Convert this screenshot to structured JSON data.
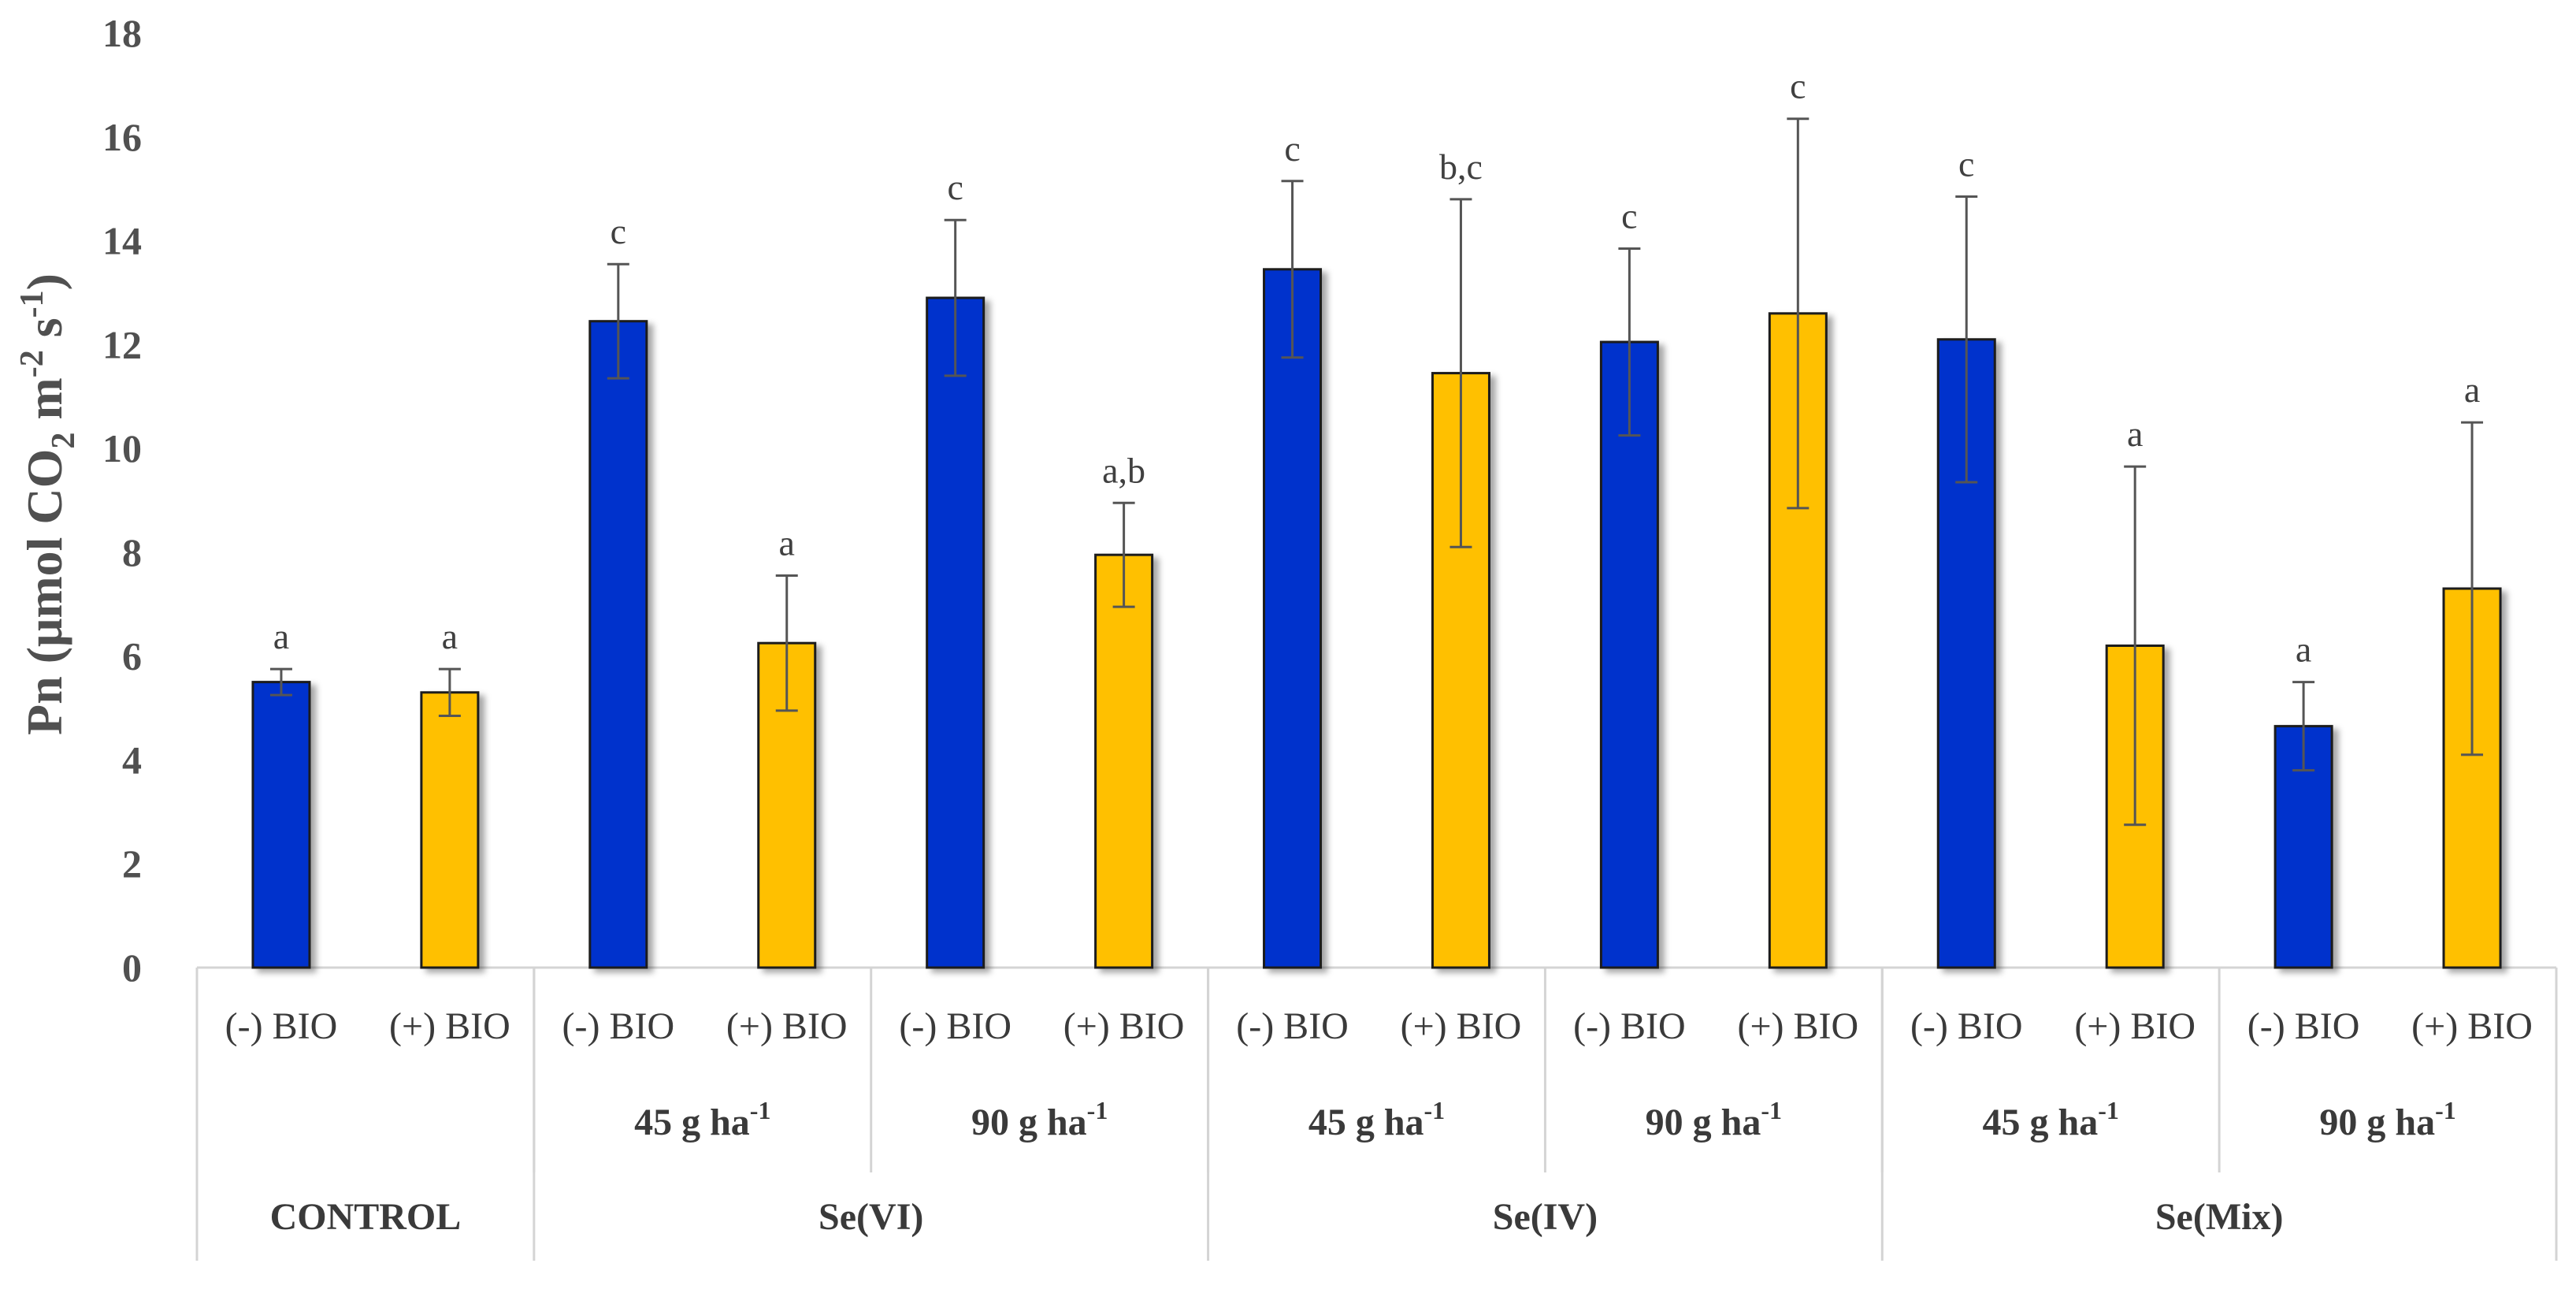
{
  "chart_data": {
    "type": "bar",
    "ylabel": "Pn (μmol CO2 m-2 s-1)",
    "ylabel_parts": {
      "prefix": "Pn (μmol CO",
      "sub1": "2",
      "mid": " m",
      "sup1": "-2",
      "mid2": " s",
      "sup2": "-1",
      "suffix": ")"
    },
    "ylim": [
      0,
      18
    ],
    "yticks": [
      "0",
      "2",
      "4",
      "6",
      "8",
      "10",
      "12",
      "14",
      "16",
      "18"
    ],
    "series": [
      {
        "name": "(-) BIO",
        "color": "#0033cc"
      },
      {
        "name": "(+) BIO",
        "color": "#ffc000"
      }
    ],
    "bars": [
      {
        "label": "(-) BIO",
        "series": 0,
        "value": 5.5,
        "error": 0.25,
        "sig": "a"
      },
      {
        "label": "(+) BIO",
        "series": 1,
        "value": 5.3,
        "error": 0.45,
        "sig": "a"
      },
      {
        "label": "(-) BIO",
        "series": 0,
        "value": 12.45,
        "error": 1.1,
        "sig": "c"
      },
      {
        "label": "(+) BIO",
        "series": 1,
        "value": 6.25,
        "error": 1.3,
        "sig": "a"
      },
      {
        "label": "(-) BIO",
        "series": 0,
        "value": 12.9,
        "error": 1.5,
        "sig": "c"
      },
      {
        "label": "(+) BIO",
        "series": 1,
        "value": 7.95,
        "error": 1.0,
        "sig": "a,b"
      },
      {
        "label": "(-) BIO",
        "series": 0,
        "value": 13.45,
        "error": 1.7,
        "sig": "c"
      },
      {
        "label": "(+) BIO",
        "series": 1,
        "value": 11.45,
        "error": 3.35,
        "sig": "b,c"
      },
      {
        "label": "(-) BIO",
        "series": 0,
        "value": 12.05,
        "error": 1.8,
        "sig": "c"
      },
      {
        "label": "(+) BIO",
        "series": 1,
        "value": 12.6,
        "error": 3.75,
        "sig": "c"
      },
      {
        "label": "(-) BIO",
        "series": 0,
        "value": 12.1,
        "error": 2.75,
        "sig": "c"
      },
      {
        "label": "(+) BIO",
        "series": 1,
        "value": 6.2,
        "error": 3.45,
        "sig": "a"
      },
      {
        "label": "(-) BIO",
        "series": 0,
        "value": 4.65,
        "error": 0.85,
        "sig": "a"
      },
      {
        "label": "(+) BIO",
        "series": 1,
        "value": 7.3,
        "error": 3.2,
        "sig": "a"
      }
    ],
    "doses": [
      {
        "label": "45 g ha",
        "sup": "-1",
        "span": [
          2,
          3
        ]
      },
      {
        "label": "90 g ha",
        "sup": "-1",
        "span": [
          4,
          5
        ]
      },
      {
        "label": "45 g ha",
        "sup": "-1",
        "span": [
          6,
          7
        ]
      },
      {
        "label": "90 g ha",
        "sup": "-1",
        "span": [
          8,
          9
        ]
      },
      {
        "label": "45 g ha",
        "sup": "-1",
        "span": [
          10,
          11
        ]
      },
      {
        "label": "90 g ha",
        "sup": "-1",
        "span": [
          12,
          13
        ]
      }
    ],
    "groups": [
      {
        "label": "CONTROL",
        "span": [
          0,
          1
        ]
      },
      {
        "label": "Se(VI)",
        "span": [
          2,
          5
        ]
      },
      {
        "label": "Se(IV)",
        "span": [
          6,
          9
        ]
      },
      {
        "label": "Se(Mix)",
        "span": [
          10,
          13
        ]
      }
    ]
  }
}
